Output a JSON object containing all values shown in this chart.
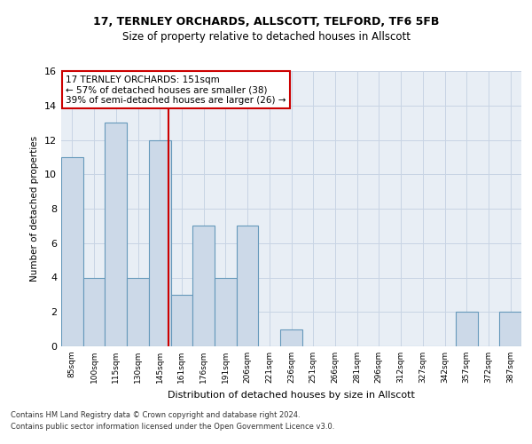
{
  "title1": "17, TERNLEY ORCHARDS, ALLSCOTT, TELFORD, TF6 5FB",
  "title2": "Size of property relative to detached houses in Allscott",
  "xlabel": "Distribution of detached houses by size in Allscott",
  "ylabel": "Number of detached properties",
  "categories": [
    "85sqm",
    "100sqm",
    "115sqm",
    "130sqm",
    "145sqm",
    "161sqm",
    "176sqm",
    "191sqm",
    "206sqm",
    "221sqm",
    "236sqm",
    "251sqm",
    "266sqm",
    "281sqm",
    "296sqm",
    "312sqm",
    "327sqm",
    "342sqm",
    "357sqm",
    "372sqm",
    "387sqm"
  ],
  "values": [
    11,
    4,
    13,
    4,
    12,
    3,
    7,
    4,
    7,
    0,
    1,
    0,
    0,
    0,
    0,
    0,
    0,
    0,
    2,
    0,
    2
  ],
  "bar_color": "#ccd9e8",
  "bar_edge_color": "#6699bb",
  "ref_line_x": 4.4,
  "ref_line_color": "#cc0000",
  "annotation_text": "17 TERNLEY ORCHARDS: 151sqm\n← 57% of detached houses are smaller (38)\n39% of semi-detached houses are larger (26) →",
  "annotation_box_color": "#cc0000",
  "grid_color": "#c8d4e4",
  "background_color": "#e8eef5",
  "footer1": "Contains HM Land Registry data © Crown copyright and database right 2024.",
  "footer2": "Contains public sector information licensed under the Open Government Licence v3.0.",
  "ylim": [
    0,
    16
  ],
  "yticks": [
    0,
    2,
    4,
    6,
    8,
    10,
    12,
    14,
    16
  ]
}
